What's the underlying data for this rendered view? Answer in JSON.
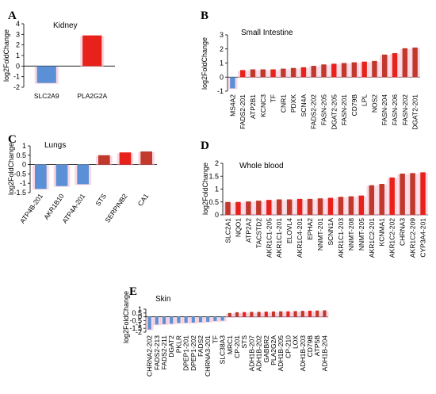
{
  "chart_data": [
    {
      "panel": "A",
      "type": "bar",
      "title": "Kidney",
      "ylabel": "log2FoldChange",
      "ylim": [
        -2,
        4
      ],
      "yticks": [
        -2,
        -1,
        0,
        1,
        2,
        3,
        4
      ],
      "categories": [
        "SLC2A9",
        "PLA2G2A"
      ],
      "values": [
        -1.6,
        2.9
      ]
    },
    {
      "panel": "B",
      "type": "bar",
      "title": "Small Intestine",
      "ylabel": "log2FoldChange",
      "ylim": [
        -1,
        3
      ],
      "yticks": [
        -1,
        0,
        1,
        2,
        3
      ],
      "categories": [
        "MS4A2",
        "FADS2-201",
        "ATP2B1",
        "KCNC3",
        "TF",
        "CNR1",
        "PDXK",
        "SCN4A",
        "FADS2-202",
        "FASN-205",
        "DGAT2-205",
        "FASN-201",
        "CD79B",
        "LPL",
        "NOS2",
        "FASN-204",
        "FASN-206",
        "FASN-202",
        "DGAT2-201"
      ],
      "values": [
        -0.8,
        0.5,
        0.55,
        0.55,
        0.55,
        0.6,
        0.65,
        0.7,
        0.8,
        0.9,
        0.95,
        1.0,
        1.05,
        1.1,
        1.15,
        1.6,
        1.7,
        2.05,
        2.1
      ]
    },
    {
      "panel": "C",
      "type": "bar",
      "title": "Lungs",
      "ylabel": "log2FoldChange",
      "ylim": [
        -1.5,
        1
      ],
      "yticks": [
        -1.5,
        -1,
        -0.5,
        0,
        0.5,
        1
      ],
      "ytick_labels": [
        "-1.5",
        "-1",
        "-0.5",
        "0",
        "0.5",
        "1"
      ],
      "categories": [
        "ATP4B-201",
        "AKR1B10",
        "ATP4A-201",
        "STS",
        "SERPINB2",
        "CA1"
      ],
      "values": [
        -1.3,
        -1.15,
        -1.05,
        0.5,
        0.65,
        0.7
      ]
    },
    {
      "panel": "D",
      "type": "bar",
      "title": "Whole blood",
      "ylabel": "log2FoldChange",
      "ylim": [
        0,
        2
      ],
      "yticks": [
        0,
        0.5,
        1,
        1.5,
        2
      ],
      "ytick_labels": [
        "0",
        "0.5",
        "1",
        "1.5",
        "2"
      ],
      "categories": [
        "SLC2A1",
        "NQO1",
        "ATP2A2",
        "TACSTD2",
        "AKR1C1-205",
        "AKR1C1-201",
        "ELOVL4",
        "AKR1C4-201",
        "EPHA2",
        "NNMT-201",
        "SCNN1A",
        "AKR1C1-203",
        "NNMT-208",
        "NNMT-205",
        "AKR1C2-201",
        "KCNMA1",
        "AKR1C2-202",
        "CHRNA3",
        "AKR1C2-209",
        "CYP3A4-201"
      ],
      "values": [
        0.5,
        0.5,
        0.52,
        0.55,
        0.58,
        0.6,
        0.6,
        0.62,
        0.62,
        0.64,
        0.66,
        0.7,
        0.72,
        0.75,
        1.15,
        1.2,
        1.45,
        1.6,
        1.62,
        1.65
      ]
    },
    {
      "panel": "E",
      "type": "bar",
      "title": "Skin",
      "ylabel": "log2FoldChange",
      "ylim": [
        -2,
        1
      ],
      "yticks": [
        -2,
        -1.5,
        -1,
        -0.5,
        0,
        0.5,
        1
      ],
      "ytick_labels": [
        "-2",
        "-1.5",
        "-1",
        "-0.5",
        "0",
        "0.5",
        "1"
      ],
      "categories": [
        "CHRNA2-202",
        "FADS2-213",
        "FADS2-211",
        "DGAT2",
        "PKLR",
        "DPEP1-201",
        "DPEP1-202",
        "FADS2",
        "CHRNA3-201",
        "TF",
        "SLC38A3",
        "MRC1",
        "CP-201",
        "STS",
        "ADH1B-207",
        "ADH1B-202",
        "GABBR2",
        "PLA2G2A",
        "ADH1B-205",
        "CP-210",
        "LOX",
        "ADH1B-203",
        "CD79B",
        "ATP5B",
        "ADH1B-204"
      ],
      "values": [
        -1.65,
        -1.0,
        -0.95,
        -0.9,
        -0.8,
        -0.78,
        -0.75,
        -0.7,
        -0.65,
        -0.55,
        -0.5,
        0.5,
        0.6,
        0.62,
        0.65,
        0.65,
        0.68,
        0.7,
        0.72,
        0.72,
        0.75,
        0.78,
        0.8,
        0.82,
        0.85
      ]
    }
  ],
  "colors": {
    "negative": "#5b8fd6",
    "positive": "#c0392b",
    "positive_bright": "#e8221a",
    "shadow": "#f4b8cc",
    "axis": "#000000"
  }
}
